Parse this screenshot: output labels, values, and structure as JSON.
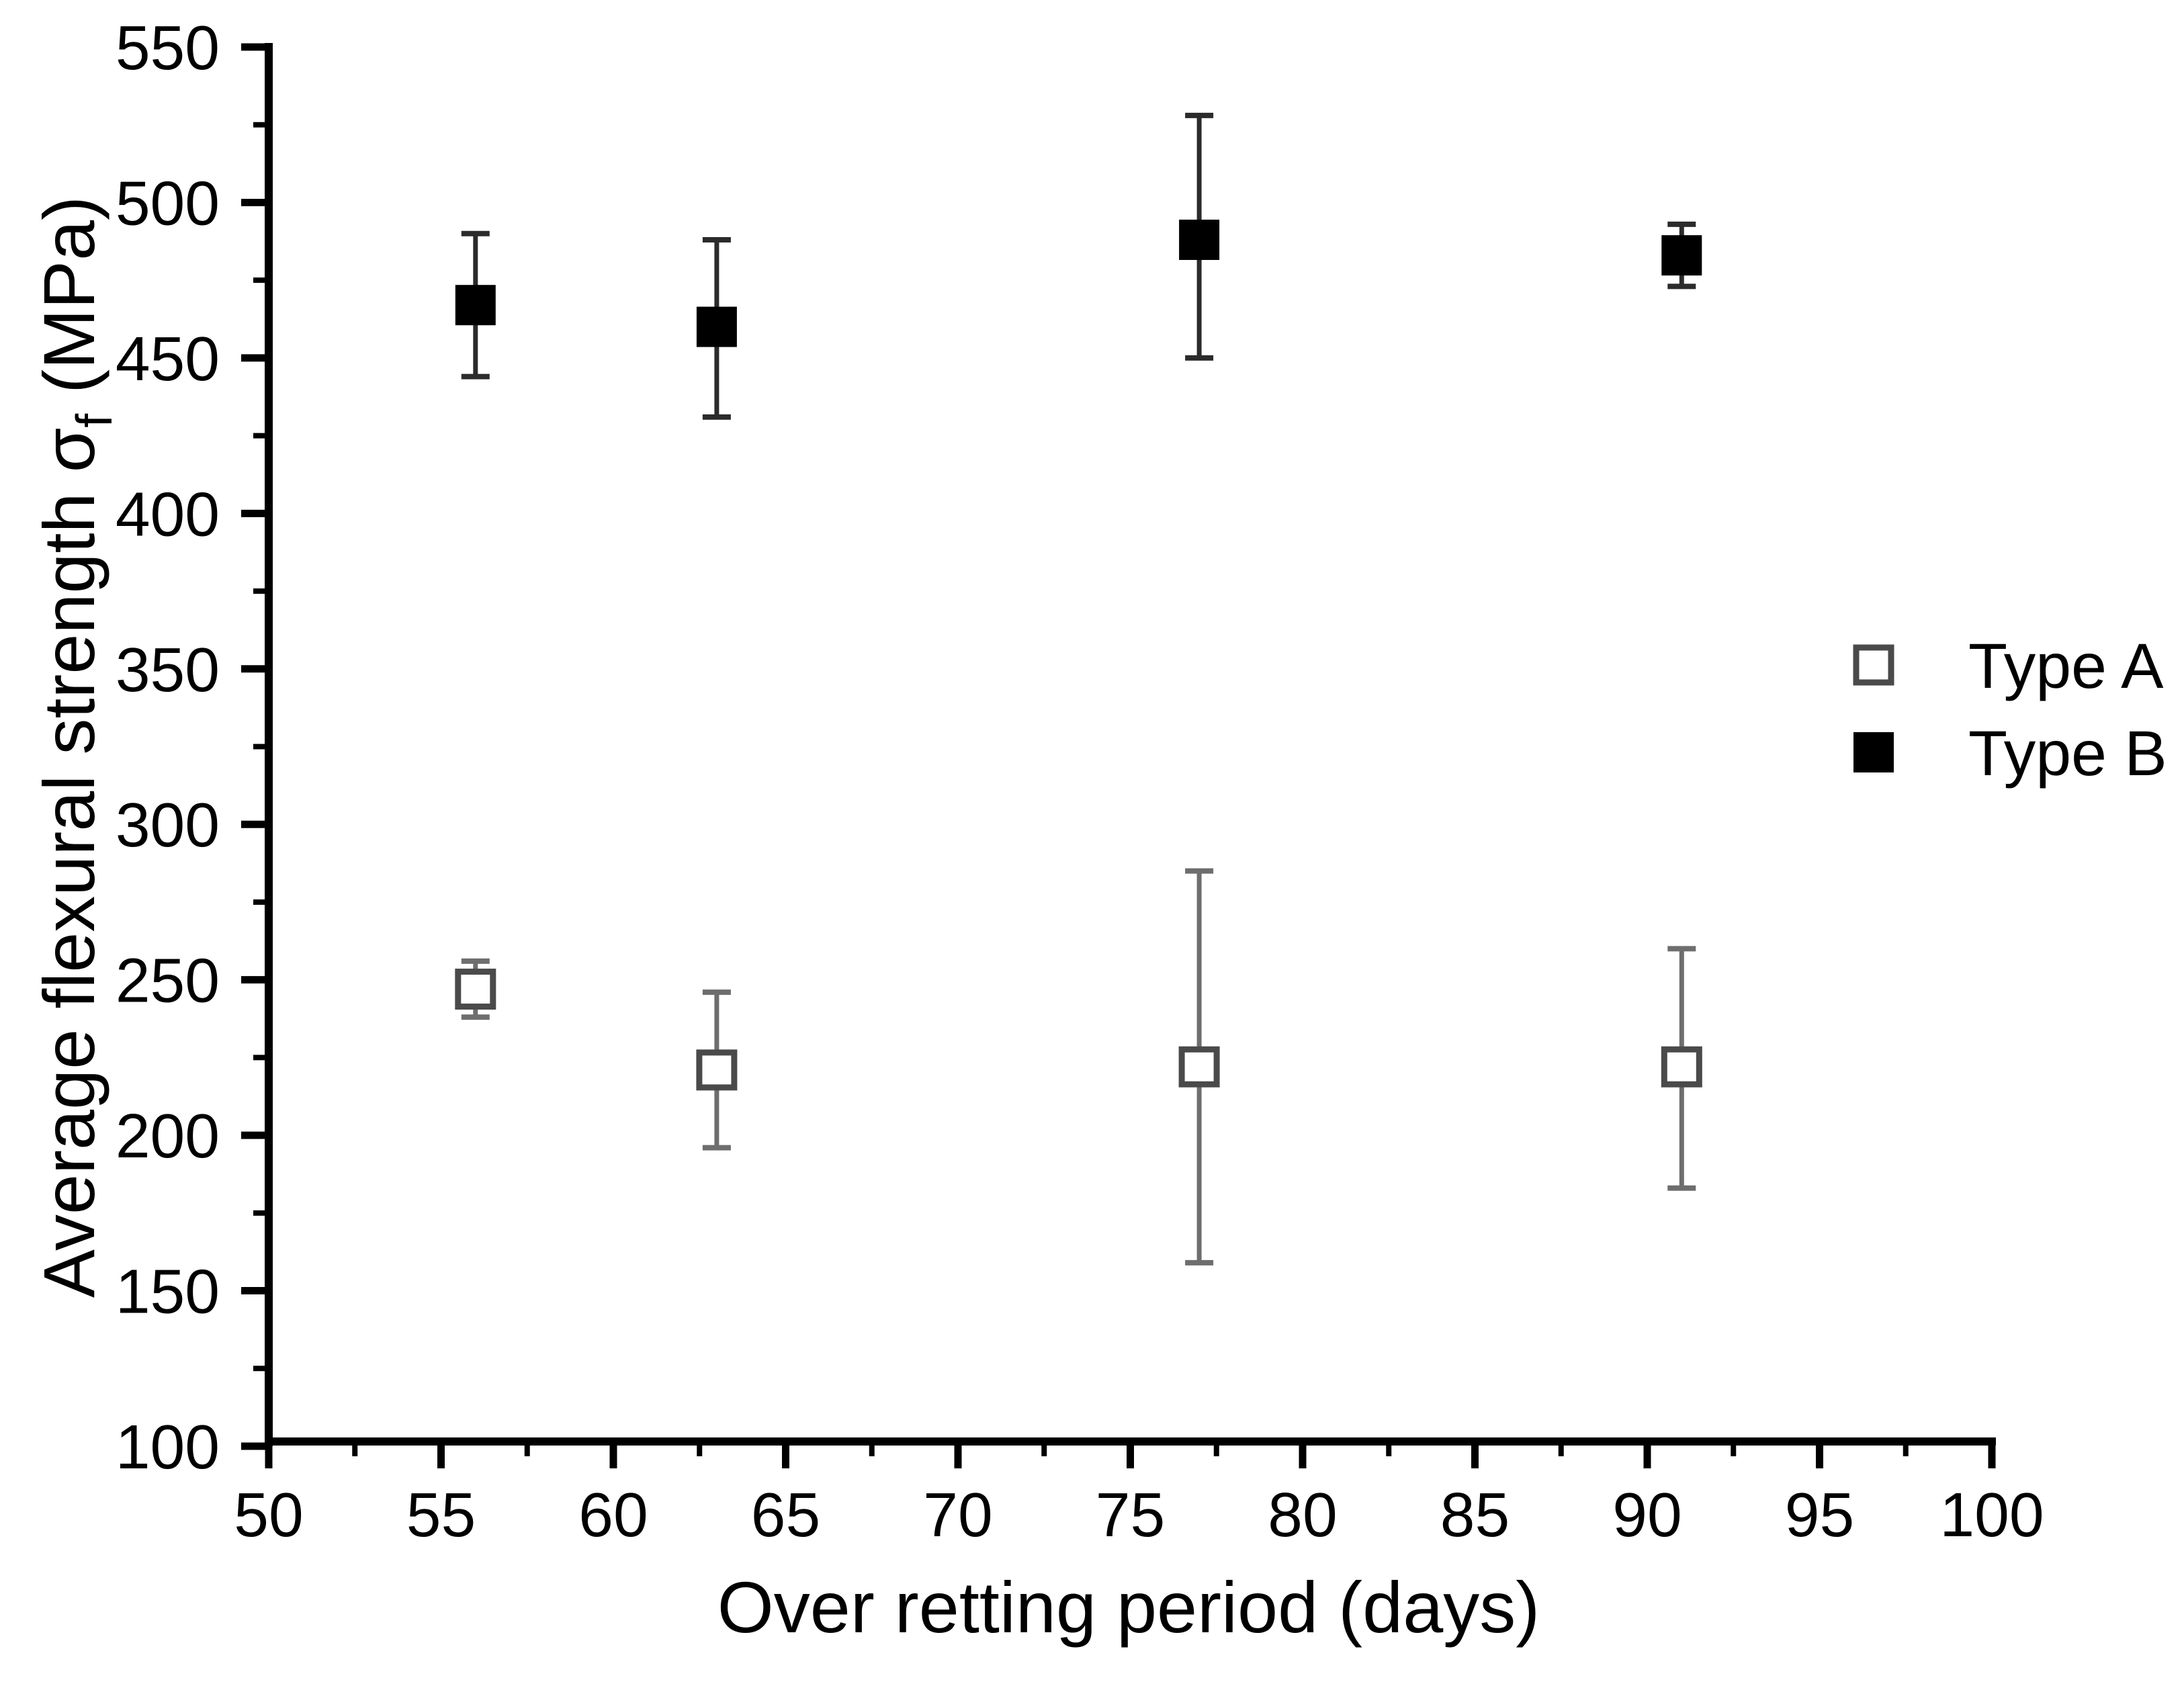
{
  "chart_data": {
    "type": "scatter",
    "xlabel": "Over retting period (days)",
    "ylabel": "Average flexural strength σf (MPa)",
    "ylabel_parts": {
      "prefix": "Average flexural strength σ",
      "subscript": "f",
      "suffix": " (MPa)"
    },
    "xlim": [
      50,
      100
    ],
    "ylim": [
      100,
      550
    ],
    "x_major_ticks": [
      50,
      55,
      60,
      65,
      70,
      75,
      80,
      85,
      90,
      95,
      100
    ],
    "x_minor_ticks": [
      52.5,
      57.5,
      62.5,
      67.5,
      72.5,
      77.5,
      82.5,
      87.5,
      92.5,
      97.5
    ],
    "y_major_ticks": [
      100,
      150,
      200,
      250,
      300,
      350,
      400,
      450,
      500,
      550
    ],
    "y_minor_ticks": [
      125,
      175,
      225,
      275,
      325,
      375,
      425,
      475,
      525
    ],
    "grid": false,
    "axis_color": "#000000",
    "legend": {
      "position": "right-center",
      "entries": [
        "Type A",
        "Type B"
      ]
    },
    "series": [
      {
        "name": "Type A",
        "marker": "open-square",
        "marker_fill": "#ffffff",
        "marker_stroke": "#4a4a4a",
        "errorbar_color": "#6e6e6e",
        "points": [
          {
            "x": 56,
            "y": 247,
            "err_up": 9,
            "err_down": 9
          },
          {
            "x": 63,
            "y": 221,
            "err_up": 25,
            "err_down": 25
          },
          {
            "x": 77,
            "y": 222,
            "err_up": 63,
            "err_down": 63
          },
          {
            "x": 91,
            "y": 222,
            "err_up": 38,
            "err_down": 39
          }
        ]
      },
      {
        "name": "Type B",
        "marker": "filled-square",
        "marker_fill": "#000000",
        "marker_stroke": "#000000",
        "errorbar_color": "#2b2b2b",
        "points": [
          {
            "x": 56,
            "y": 467,
            "err_up": 23,
            "err_down": 23
          },
          {
            "x": 63,
            "y": 460,
            "err_up": 28,
            "err_down": 29
          },
          {
            "x": 77,
            "y": 488,
            "err_up": 40,
            "err_down": 38
          },
          {
            "x": 91,
            "y": 483,
            "err_up": 10,
            "err_down": 10
          }
        ]
      }
    ]
  }
}
